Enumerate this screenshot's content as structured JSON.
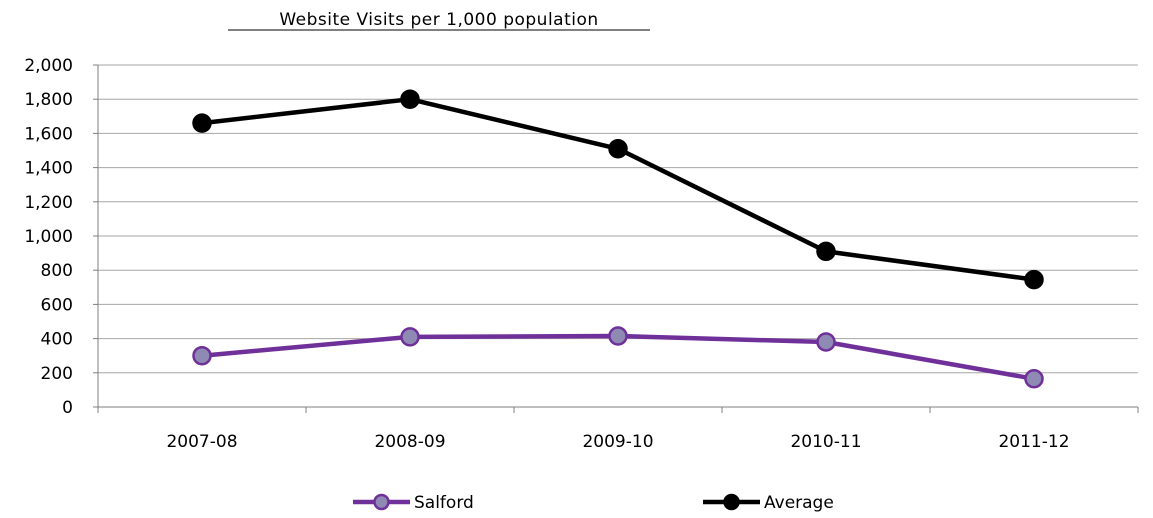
{
  "chart_data": {
    "type": "line",
    "title": "Website Visits per 1,000 population",
    "xlabel": "",
    "ylabel": "",
    "categories": [
      "2007-08",
      "2008-09",
      "2009-10",
      "2010-11",
      "2011-12"
    ],
    "ylim": [
      0,
      2000
    ],
    "yticks": [
      0,
      200,
      400,
      600,
      800,
      1000,
      1200,
      1400,
      1600,
      1800,
      2000
    ],
    "ytick_labels": [
      "0",
      "200",
      "400",
      "600",
      "800",
      "1,000",
      "1,200",
      "1,400",
      "1,600",
      "1,800",
      "2,000"
    ],
    "grid": true,
    "legend_position": "bottom",
    "series": [
      {
        "name": "Salford",
        "values": [
          300,
          410,
          415,
          380,
          165
        ],
        "line_color": "#70309a",
        "marker_color": "#8e8ab4",
        "marker_edge": "#70309a"
      },
      {
        "name": "Average",
        "values": [
          1660,
          1800,
          1510,
          910,
          745
        ],
        "line_color": "#000000",
        "marker_color": "#000000",
        "marker_edge": "#000000"
      }
    ]
  }
}
